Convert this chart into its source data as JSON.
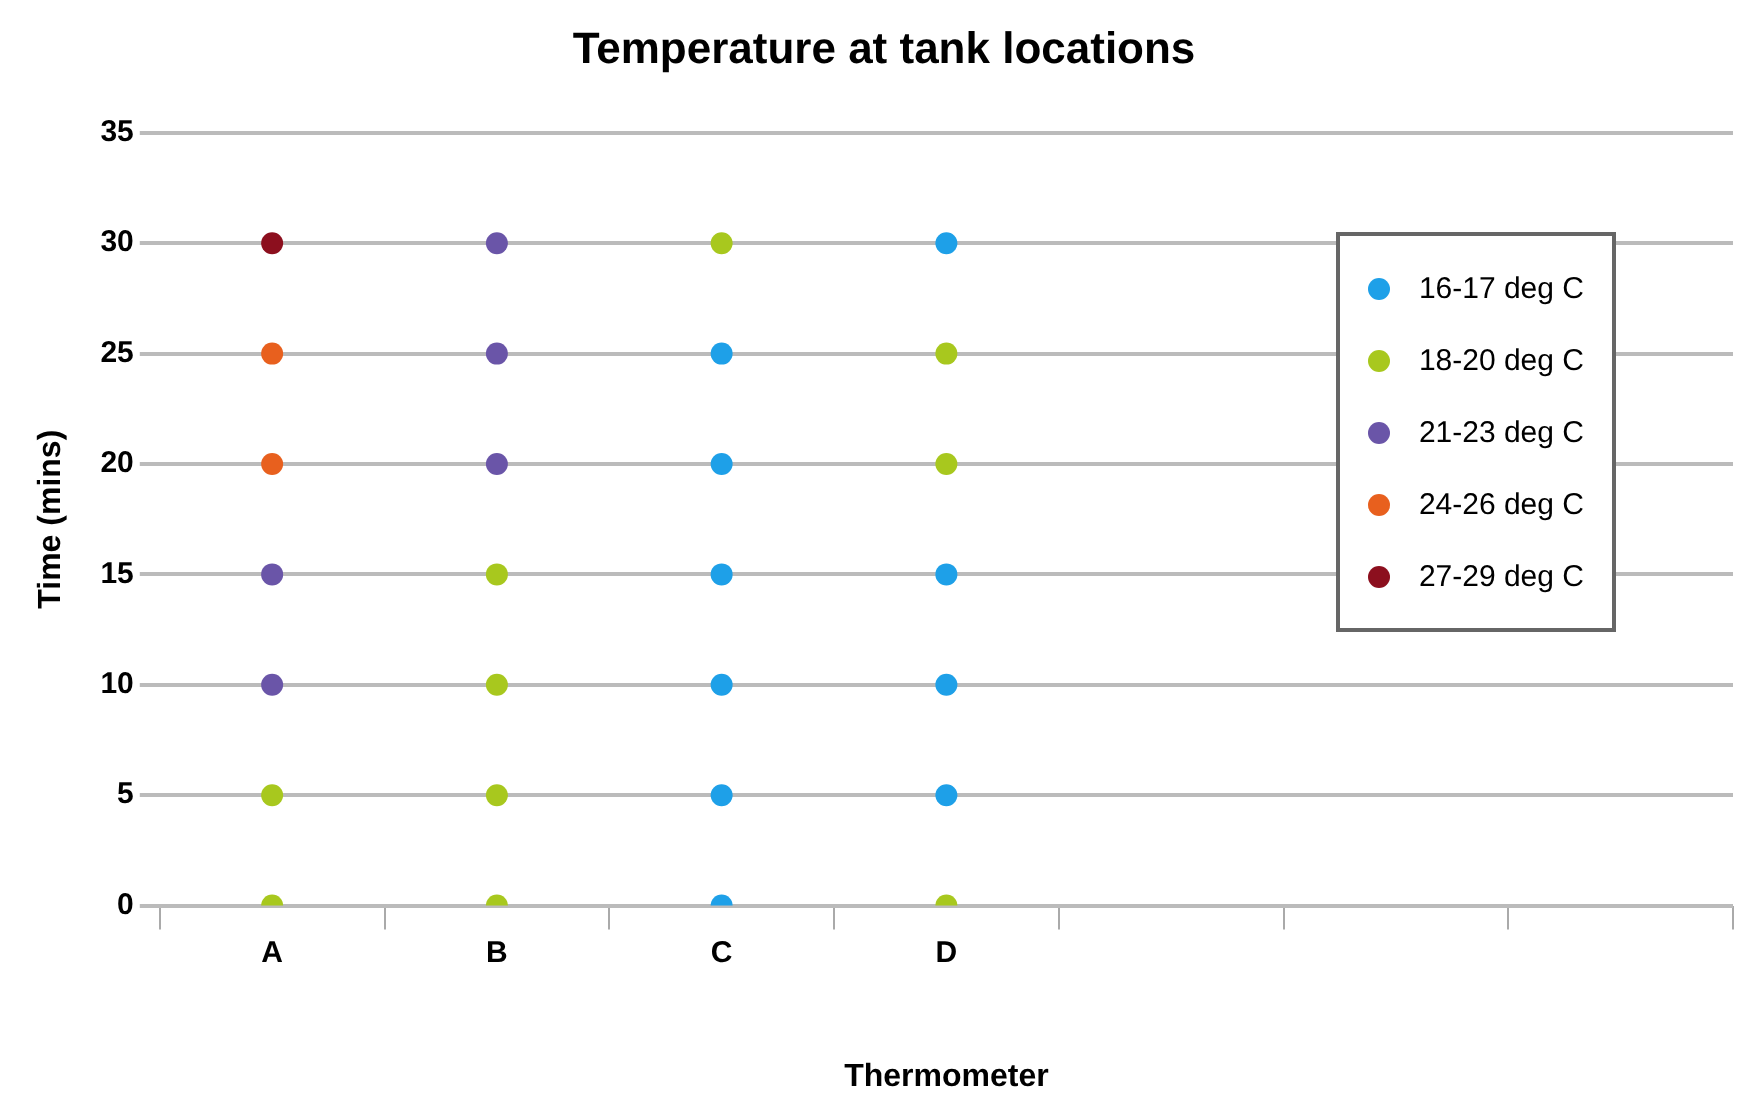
{
  "chart_data": {
    "type": "scatter",
    "title": "Temperature at tank locations",
    "xlabel": "Thermometer",
    "ylabel": "Time (mins)",
    "categories": [
      "A",
      "B",
      "C",
      "D",
      null,
      null,
      null
    ],
    "ylim": [
      0,
      35
    ],
    "yticks": [
      0,
      5,
      10,
      15,
      20,
      25,
      30,
      35
    ],
    "grid": "y",
    "legend": "top right",
    "marker": "circle",
    "series": [
      {
        "name": "16-17 deg C",
        "color": "#1ea0e8",
        "x": [
          "C",
          "C",
          "C",
          "C",
          "C",
          "C",
          "D",
          "D",
          "D",
          "D"
        ],
        "values": [
          0,
          5,
          10,
          15,
          20,
          25,
          5,
          10,
          15,
          30
        ]
      },
      {
        "name": "18-20 deg C",
        "color": "#a8c81e",
        "x": [
          "A",
          "A",
          "B",
          "B",
          "B",
          "B",
          "C",
          "D",
          "D",
          "D"
        ],
        "values": [
          0,
          5,
          0,
          5,
          10,
          15,
          30,
          0,
          20,
          25
        ]
      },
      {
        "name": "21-23 deg C",
        "color": "#6a55a8",
        "x": [
          "A",
          "A",
          "B",
          "B",
          "B"
        ],
        "values": [
          10,
          15,
          20,
          25,
          30
        ]
      },
      {
        "name": "24-26 deg C",
        "color": "#e8601e",
        "x": [
          "A",
          "A"
        ],
        "values": [
          20,
          25
        ]
      },
      {
        "name": "27-29 deg C",
        "color": "#8c0f1e",
        "x": [
          "A"
        ],
        "values": [
          30
        ]
      }
    ]
  }
}
